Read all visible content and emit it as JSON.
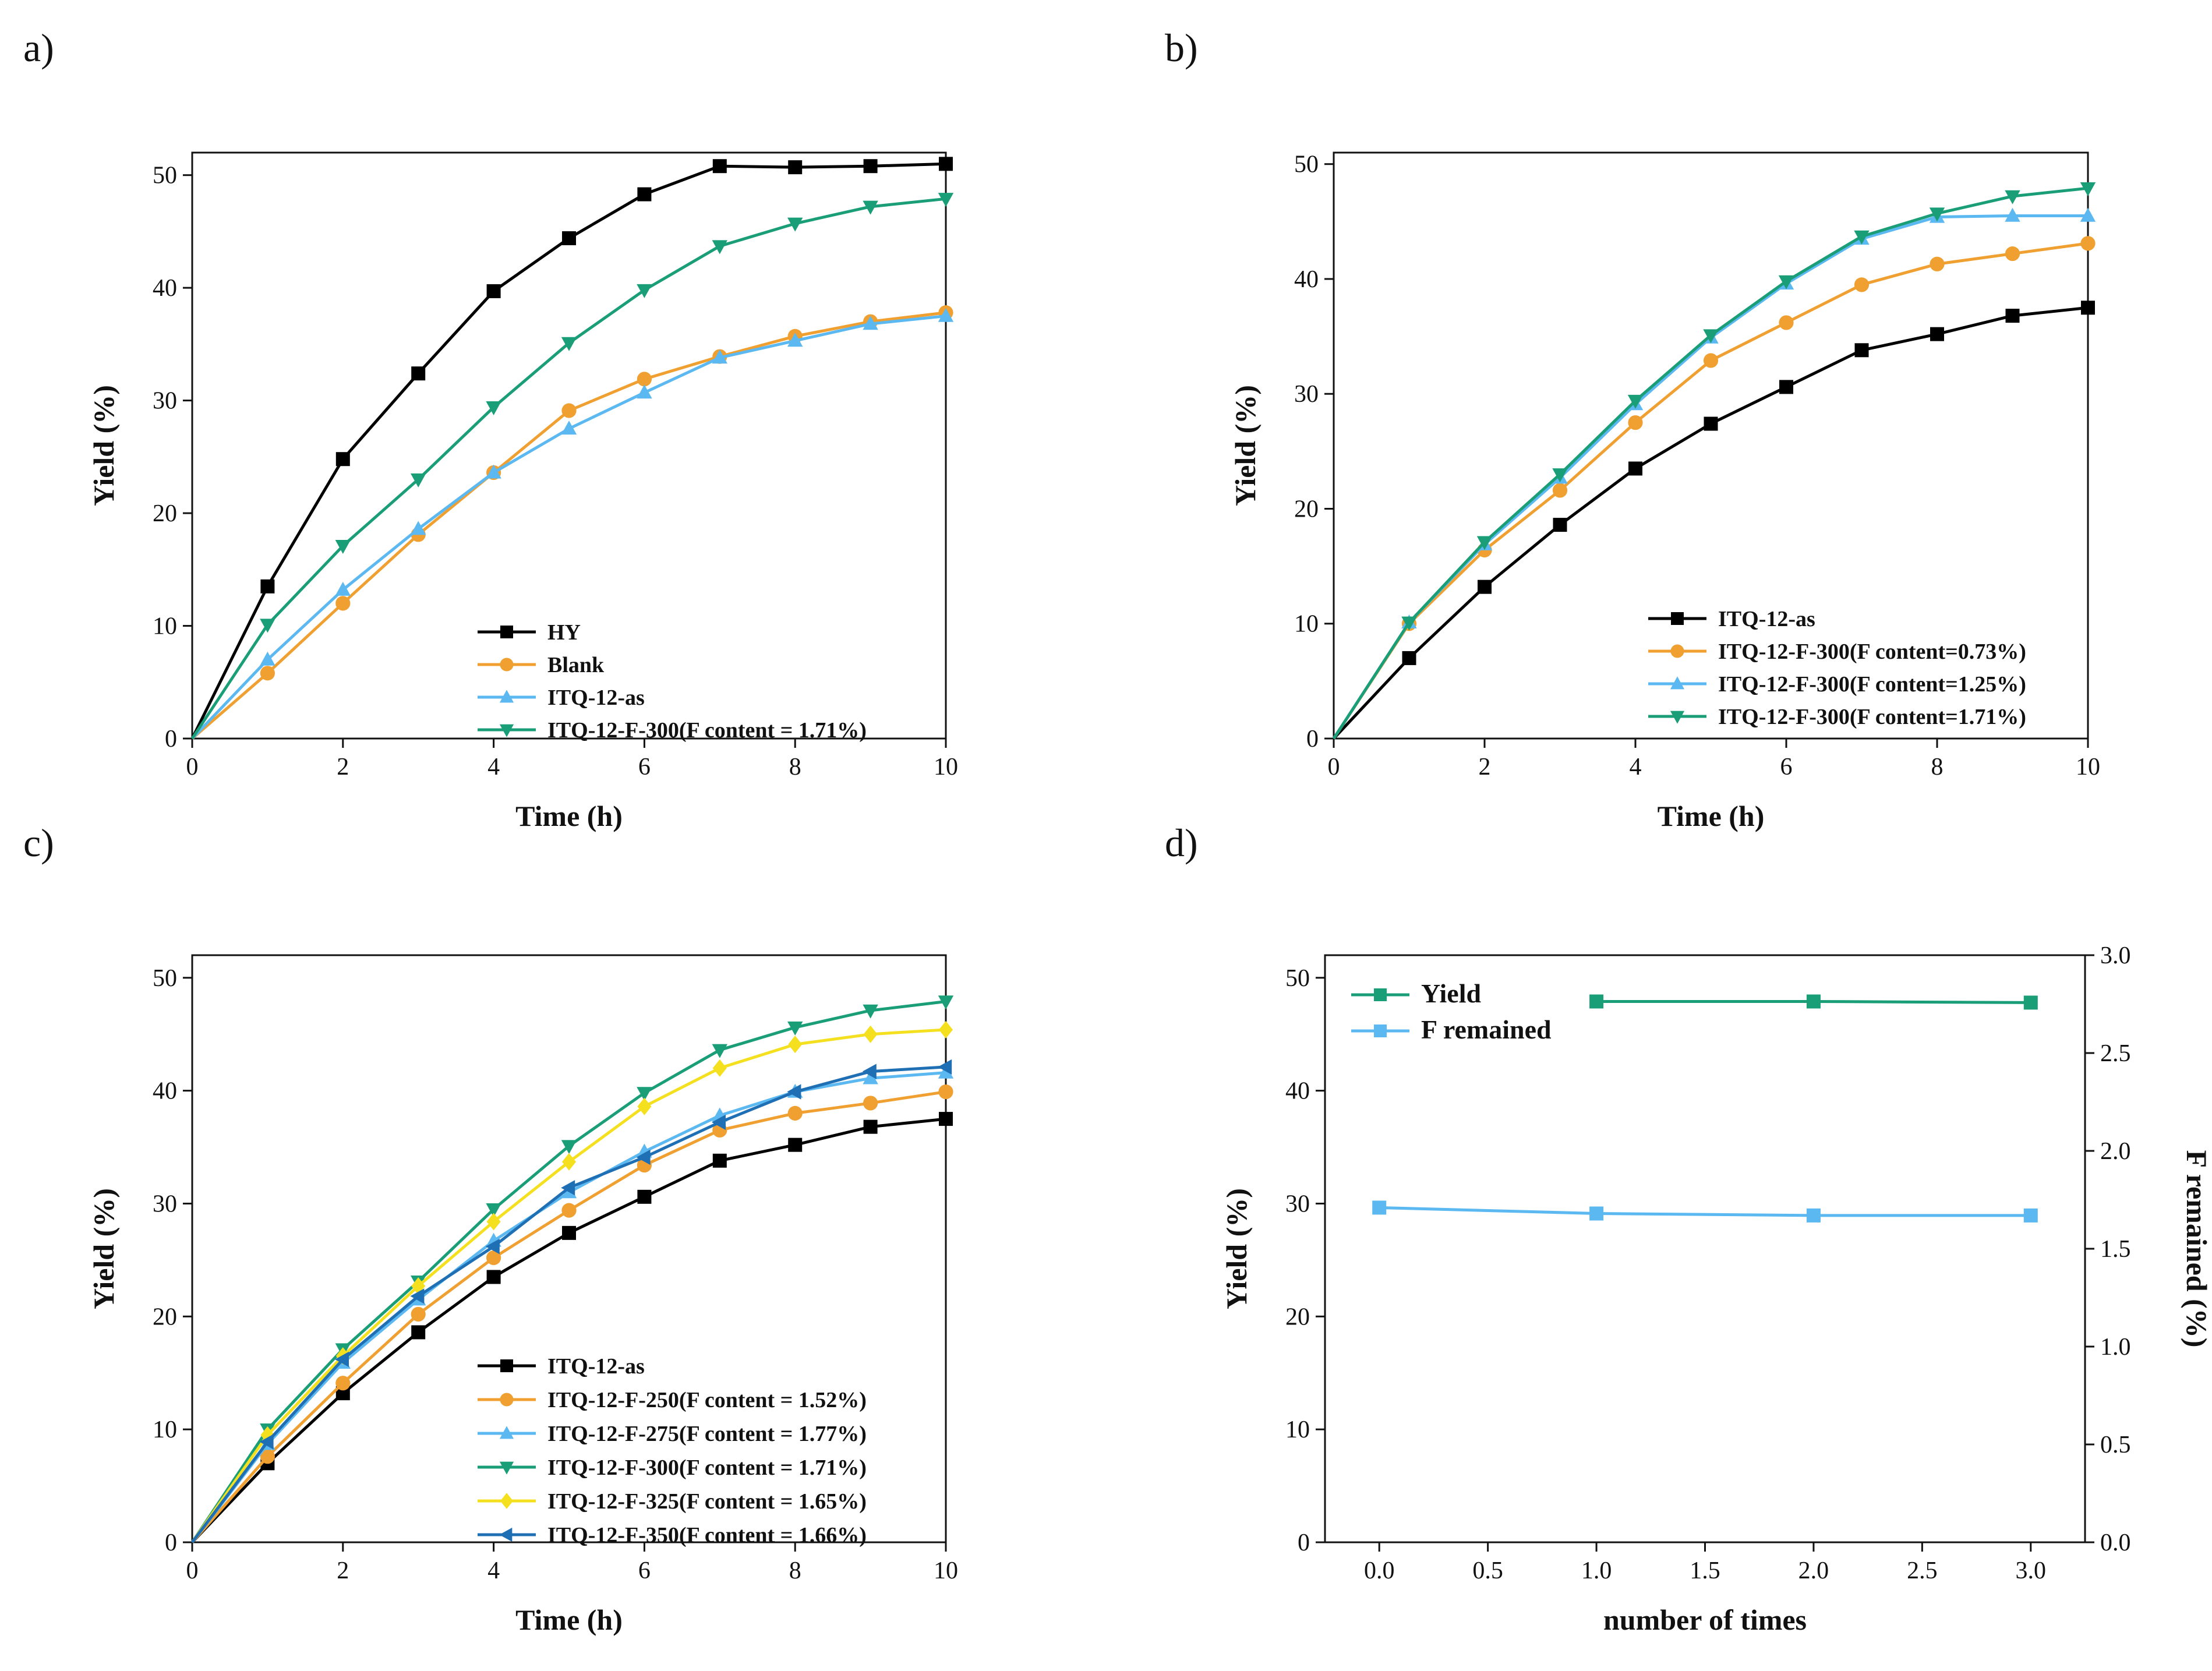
{
  "chart_data": [
    {
      "id": "a",
      "panel_label": "a)",
      "type": "line",
      "xlabel": "Time (h)",
      "ylabel": "Yield (%)",
      "xlim": [
        0,
        10
      ],
      "ylim": [
        0,
        52
      ],
      "xticks": [
        0,
        2,
        4,
        6,
        8,
        10
      ],
      "yticks": [
        0,
        10,
        20,
        30,
        40,
        50
      ],
      "legend_position": "bottom-right",
      "x": [
        0,
        1,
        2,
        3,
        4,
        5,
        6,
        7,
        8,
        9,
        10
      ],
      "series": [
        {
          "name": "HY",
          "color": "#000000",
          "marker": "square",
          "values": [
            0,
            13.5,
            24.8,
            32.4,
            39.7,
            44.4,
            48.3,
            50.8,
            50.7,
            50.8,
            51.0
          ]
        },
        {
          "name": "Blank",
          "color": "#f0a030",
          "marker": "circle",
          "values": [
            0,
            5.8,
            12.0,
            18.1,
            23.6,
            29.1,
            31.9,
            33.9,
            35.7,
            37.0,
            37.8
          ]
        },
        {
          "name": "ITQ-12-as",
          "color": "#5bb8f0",
          "marker": "triangle-up",
          "values": [
            0,
            7.0,
            13.2,
            18.6,
            23.6,
            27.5,
            30.7,
            33.8,
            35.3,
            36.8,
            37.5
          ]
        },
        {
          "name": "ITQ-12-F-300(F content = 1.71%)",
          "color": "#1a9e77",
          "marker": "triangle-down",
          "values": [
            0,
            10.1,
            17.1,
            23.0,
            29.4,
            35.1,
            39.8,
            43.7,
            45.7,
            47.2,
            47.9
          ]
        }
      ]
    },
    {
      "id": "b",
      "panel_label": "b)",
      "type": "line",
      "xlabel": "Time (h)",
      "ylabel": "Yield (%)",
      "xlim": [
        0,
        10
      ],
      "ylim": [
        0,
        51
      ],
      "xticks": [
        0,
        2,
        4,
        6,
        8,
        10
      ],
      "yticks": [
        0,
        10,
        20,
        30,
        40,
        50
      ],
      "legend_position": "bottom-right",
      "x": [
        0,
        1,
        2,
        3,
        4,
        5,
        6,
        7,
        8,
        9,
        10
      ],
      "series": [
        {
          "name": "ITQ-12-as",
          "color": "#000000",
          "marker": "square",
          "values": [
            0,
            7.0,
            13.2,
            18.6,
            23.5,
            27.4,
            30.6,
            33.8,
            35.2,
            36.8,
            37.5
          ]
        },
        {
          "name": "ITQ-12-F-300(F content=0.73%)",
          "color": "#f0a030",
          "marker": "circle",
          "values": [
            0,
            10.0,
            16.4,
            21.6,
            27.5,
            32.9,
            36.2,
            39.5,
            41.3,
            42.2,
            43.1
          ]
        },
        {
          "name": "ITQ-12-F-300(F content=1.25%)",
          "color": "#5bb8f0",
          "marker": "triangle-up",
          "values": [
            0,
            10.1,
            16.9,
            22.7,
            29.1,
            34.9,
            39.6,
            43.5,
            45.4,
            45.5,
            45.5
          ]
        },
        {
          "name": "ITQ-12-F-300(F content=1.71%)",
          "color": "#1a9e77",
          "marker": "triangle-down",
          "values": [
            0,
            10.1,
            17.1,
            23.0,
            29.4,
            35.1,
            39.8,
            43.7,
            45.7,
            47.2,
            47.9
          ]
        }
      ]
    },
    {
      "id": "c",
      "panel_label": "c)",
      "type": "line",
      "xlabel": "Time (h)",
      "ylabel": "Yield (%)",
      "xlim": [
        0,
        10
      ],
      "ylim": [
        0,
        52
      ],
      "xticks": [
        0,
        2,
        4,
        6,
        8,
        10
      ],
      "yticks": [
        0,
        10,
        20,
        30,
        40,
        50
      ],
      "legend_position": "bottom-right",
      "x": [
        0,
        1,
        2,
        3,
        4,
        5,
        6,
        7,
        8,
        9,
        10
      ],
      "series": [
        {
          "name": "ITQ-12-as",
          "color": "#000000",
          "marker": "square",
          "values": [
            0,
            7.0,
            13.2,
            18.6,
            23.5,
            27.4,
            30.6,
            33.8,
            35.2,
            36.8,
            37.5
          ]
        },
        {
          "name": "ITQ-12-F-250(F content = 1.52%)",
          "color": "#f0a030",
          "marker": "circle",
          "values": [
            0,
            7.6,
            14.1,
            20.2,
            25.2,
            29.4,
            33.4,
            36.5,
            38.0,
            38.9,
            39.9
          ]
        },
        {
          "name": "ITQ-12-F-275(F content = 1.77%)",
          "color": "#5bb8f0",
          "marker": "triangle-up",
          "values": [
            0,
            8.7,
            15.9,
            21.5,
            26.7,
            31.0,
            34.6,
            37.8,
            39.9,
            41.1,
            41.6
          ]
        },
        {
          "name": "ITQ-12-F-300(F content = 1.71%)",
          "color": "#1a9e77",
          "marker": "triangle-down",
          "values": [
            0,
            10.0,
            17.1,
            23.1,
            29.5,
            35.1,
            39.8,
            43.6,
            45.6,
            47.1,
            47.9
          ]
        },
        {
          "name": "ITQ-12-F-325(F content = 1.65%)",
          "color": "#f5e020",
          "marker": "diamond",
          "values": [
            0,
            9.5,
            16.5,
            22.7,
            28.4,
            33.7,
            38.6,
            42.0,
            44.1,
            45.0,
            45.4
          ]
        },
        {
          "name": "ITQ-12-F-350(F content = 1.66%)",
          "color": "#1f6fb5",
          "marker": "triangle-left",
          "values": [
            0,
            8.9,
            16.2,
            21.8,
            26.2,
            31.4,
            34.1,
            37.2,
            39.9,
            41.7,
            42.1
          ]
        }
      ]
    },
    {
      "id": "d",
      "panel_label": "d)",
      "type": "line",
      "xlabel": "number of times",
      "ylabel": "Yield (%)",
      "ylabel_right": "F remained (%)",
      "xlim": [
        -0.25,
        3.25
      ],
      "ylim": [
        0,
        52
      ],
      "ylim_right": [
        0,
        3.0
      ],
      "xticks": [
        "0.0",
        "0.5",
        "1.0",
        "1.5",
        "2.0",
        "2.5",
        "3.0"
      ],
      "yticks": [
        0,
        10,
        20,
        30,
        40,
        50
      ],
      "yticks_right": [
        "0.0",
        "0.5",
        "1.0",
        "1.5",
        "2.0",
        "2.5",
        "3.0"
      ],
      "legend_position": "top-left",
      "series": [
        {
          "name": "Yield",
          "color": "#1a9e77",
          "marker": "square",
          "axis": "left",
          "x": [
            1,
            2,
            3
          ],
          "values": [
            47.9,
            47.9,
            47.8
          ]
        },
        {
          "name": "F remained",
          "color": "#5bb8f0",
          "marker": "square",
          "axis": "right",
          "x": [
            0,
            1,
            2,
            3
          ],
          "values": [
            1.71,
            1.68,
            1.67,
            1.67
          ]
        }
      ]
    }
  ]
}
